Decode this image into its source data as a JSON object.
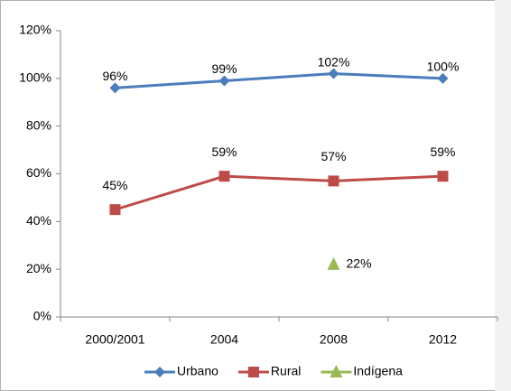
{
  "chart_data": {
    "type": "line",
    "categories": [
      "2000/2001",
      "2004",
      "2008",
      "2012"
    ],
    "series": [
      {
        "name": "Urbano",
        "color": "#4a7ebb",
        "marker": "diamond",
        "values": [
          96,
          99,
          102,
          100
        ],
        "value_labels": [
          "96%",
          "99%",
          "102%",
          "100%"
        ]
      },
      {
        "name": "Rural",
        "color": "#be4b48",
        "marker": "square",
        "values": [
          45,
          59,
          57,
          59
        ],
        "value_labels": [
          "45%",
          "59%",
          "57%",
          "59%"
        ]
      },
      {
        "name": "Indígena",
        "color": "#98b954",
        "marker": "triangle",
        "values": [
          null,
          null,
          22,
          null
        ],
        "value_labels": [
          null,
          null,
          "22%",
          null
        ]
      }
    ],
    "ylim": [
      0,
      120
    ],
    "yticks": [
      {
        "value": 0,
        "label": "0%"
      },
      {
        "value": 20,
        "label": "20%"
      },
      {
        "value": 40,
        "label": "40%"
      },
      {
        "value": 60,
        "label": "60%"
      },
      {
        "value": 80,
        "label": "80%"
      },
      {
        "value": 100,
        "label": "100%"
      },
      {
        "value": 120,
        "label": "120%"
      }
    ],
    "grid": false,
    "legend": "bottom"
  }
}
